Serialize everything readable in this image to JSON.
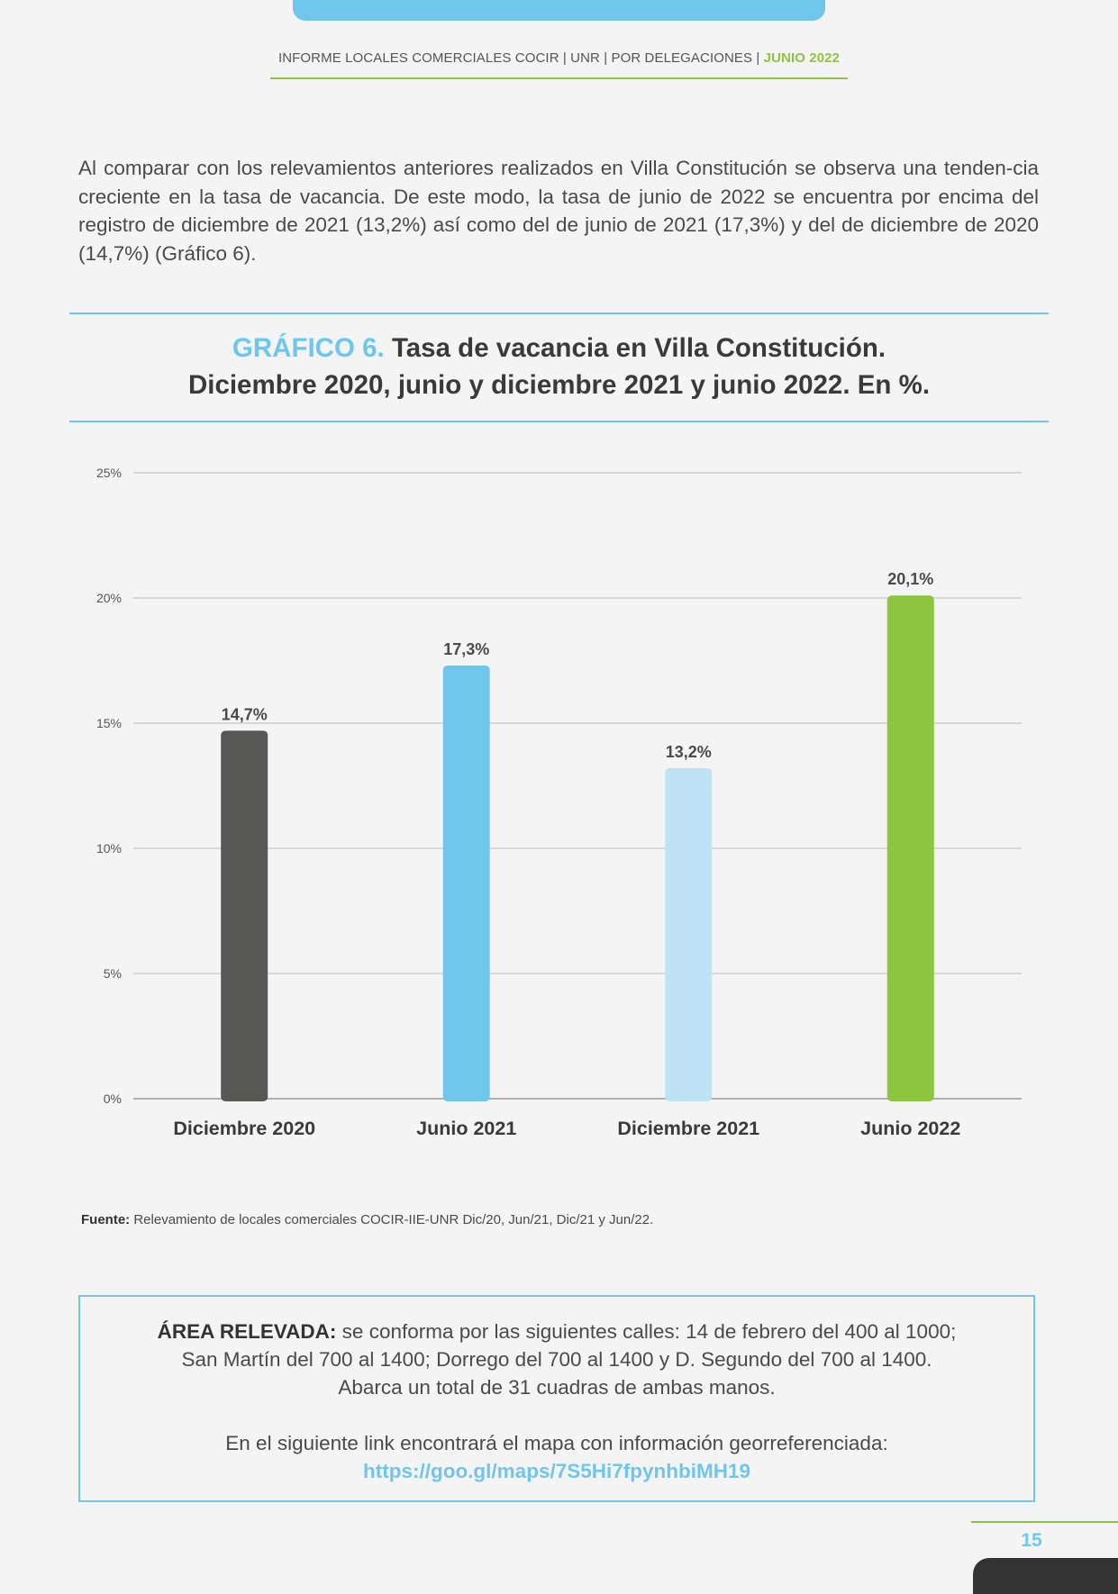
{
  "header": {
    "text": "INFORME LOCALES COMERCIALES COCIR | UNR | POR DELEGACIONES | ",
    "highlight": "JUNIO 2022"
  },
  "intro": "Al comparar con los relevamientos anteriores realizados en Villa Constitución se observa una tenden-cia creciente en la tasa de vacancia. De este modo, la tasa de junio de 2022 se encuentra por encima del registro de diciembre de 2021 (13,2%) así como del de junio de 2021 (17,3%) y del de diciembre de 2020 (14,7%) (Gráfico 6).",
  "chart_title": {
    "number": "GRÁFICO 6.",
    "line1": "Tasa de vacancia en Villa Constitución.",
    "line2": "Diciembre 2020, junio y diciembre 2021 y junio 2022. En %."
  },
  "chart_data": {
    "type": "bar",
    "categories": [
      "Diciembre 2020",
      "Junio 2021",
      "Diciembre 2021",
      "Junio 2022"
    ],
    "values": [
      14.7,
      17.3,
      13.2,
      20.1
    ],
    "data_labels": [
      "14,7%",
      "17,3%",
      "13,2%",
      "20,1%"
    ],
    "colors": [
      "#575756",
      "#6ec6ec",
      "#bde3f5",
      "#8cc63f"
    ],
    "yticks": [
      0,
      5,
      10,
      15,
      20,
      25
    ],
    "ytick_labels": [
      "0%",
      "5%",
      "10%",
      "15%",
      "20%",
      "25%"
    ],
    "ylim": [
      0,
      25
    ],
    "grid": true,
    "title": "GRÁFICO 6. Tasa de vacancia en Villa Constitución. Diciembre 2020, junio y diciembre 2021 y junio 2022. En %.",
    "xlabel": "",
    "ylabel": ""
  },
  "source": {
    "label": "Fuente:",
    "text": " Relevamiento de locales comerciales COCIR-IIE-UNR Dic/20, Jun/21, Dic/21 y Jun/22."
  },
  "area": {
    "label": "ÁREA RELEVADA:",
    "text1": " se conforma por las siguientes calles: 14 de febrero del 400 al 1000;",
    "text2": "San Martín del 700 al 1400; Dorrego del 700 al 1400 y D. Segundo del 700 al 1400.",
    "text3": "Abarca un total de 31 cuadras de ambas manos.",
    "link_intro": "En el siguiente link encontrará el mapa con información georreferenciada:",
    "link": "https://goo.gl/maps/7S5Hi7fpynhbiMH19"
  },
  "page_number": "15"
}
